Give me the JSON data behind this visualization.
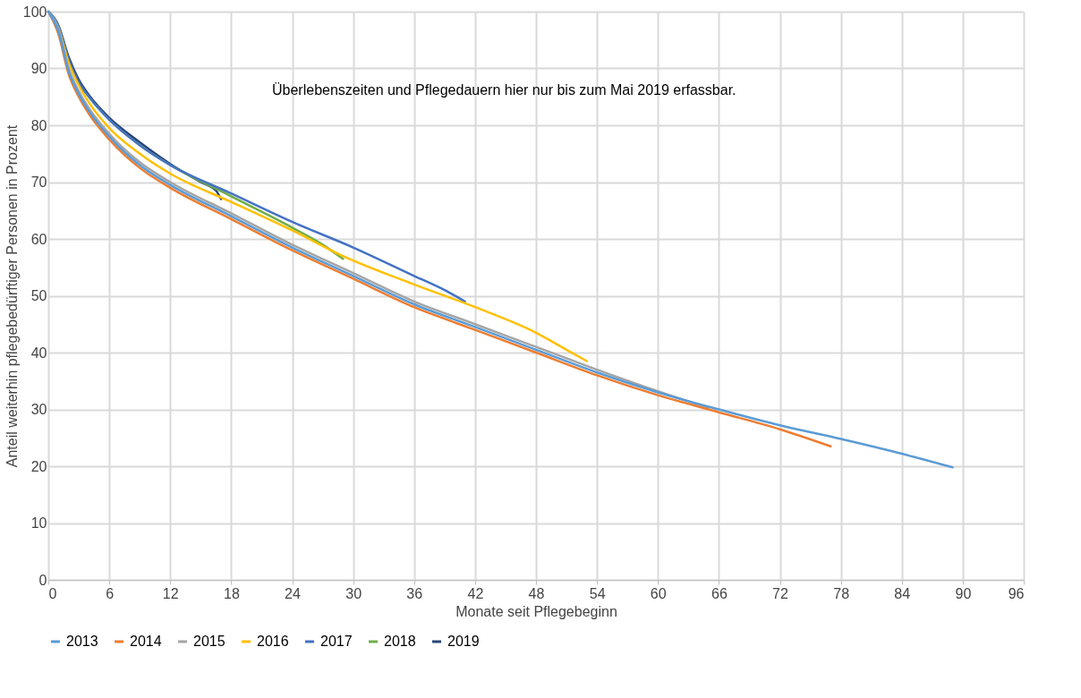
{
  "chart_data": {
    "type": "line",
    "xlabel": "Monate seit Pflegebeginn",
    "ylabel": "Anteil weiterhin pflegebedürftiger Personen in Prozent",
    "annotations": [
      "Überlebenszeiten und Pflegedauern hier nur bis zum Mai 2019 erfassbar."
    ],
    "xlim": [
      0,
      96
    ],
    "xticks": [
      0,
      6,
      12,
      18,
      24,
      30,
      36,
      42,
      48,
      54,
      60,
      66,
      72,
      78,
      84,
      90,
      96
    ],
    "ylim": [
      0,
      100
    ],
    "yticks": [
      0,
      10,
      20,
      30,
      40,
      50,
      60,
      70,
      80,
      90,
      100
    ],
    "grid": true,
    "legend": "bottom",
    "marker": "none",
    "line_style": "solid",
    "series": [
      {
        "name": "2013",
        "color": "#5b9bd5",
        "x": [
          0,
          1,
          2,
          3,
          4,
          6,
          9,
          12,
          18,
          24,
          30,
          36,
          42,
          48,
          54,
          60,
          66,
          72,
          78,
          84,
          89
        ],
        "values": [
          100,
          96.5,
          89.5,
          85.5,
          82.5,
          78,
          73,
          69.5,
          64,
          58.5,
          53.5,
          48.5,
          44.5,
          40.5,
          36.5,
          33,
          30,
          27.2,
          24.8,
          22.2,
          19.8
        ]
      },
      {
        "name": "2014",
        "color": "#ed7d31",
        "x": [
          0,
          1,
          2,
          3,
          4,
          6,
          9,
          12,
          18,
          24,
          30,
          36,
          42,
          48,
          54,
          60,
          66,
          72,
          77
        ],
        "values": [
          100,
          96,
          89,
          85,
          82,
          77.5,
          72.5,
          69,
          63.5,
          58,
          53,
          48,
          44,
          40,
          36,
          32.5,
          29.5,
          26.5,
          23.5
        ]
      },
      {
        "name": "2015",
        "color": "#a5a5a5",
        "x": [
          0,
          1,
          2,
          3,
          4,
          6,
          9,
          12,
          18,
          24,
          30,
          36,
          42,
          48,
          54,
          60,
          65
        ],
        "values": [
          100,
          97,
          90,
          86,
          83,
          78.5,
          73.5,
          70,
          64.5,
          59,
          54,
          49,
          45,
          41,
          37,
          33.2,
          30.2
        ]
      },
      {
        "name": "2016",
        "color": "#ffc000",
        "x": [
          0,
          1,
          2,
          3,
          4,
          6,
          9,
          12,
          18,
          24,
          29,
          36,
          42,
          48,
          51,
          53
        ],
        "values": [
          100,
          97,
          91,
          87,
          84,
          79.5,
          75,
          71.5,
          66.5,
          61.5,
          57,
          52,
          48,
          43.5,
          40.5,
          38.5
        ]
      },
      {
        "name": "2017",
        "color": "#4472c4",
        "x": [
          0,
          1,
          2,
          3,
          4,
          6,
          9,
          12,
          18,
          24,
          30,
          36,
          39,
          41
        ],
        "values": [
          100,
          97.5,
          91.5,
          87.5,
          85,
          81,
          76.5,
          73,
          68,
          63,
          58.5,
          53.5,
          51,
          49
        ]
      },
      {
        "name": "2018",
        "color": "#70ad47",
        "x": [
          0,
          1,
          2,
          3,
          4,
          6,
          9,
          12,
          18,
          24,
          27,
          29
        ],
        "values": [
          100,
          97.5,
          91.5,
          87.5,
          85,
          81,
          76.5,
          73,
          67.5,
          62,
          59,
          56.5
        ]
      },
      {
        "name": "2019",
        "color": "#264478",
        "x": [
          0,
          1,
          2,
          3,
          4,
          6,
          9,
          12,
          15,
          16.5,
          17
        ],
        "values": [
          100,
          97.5,
          92,
          88,
          85.3,
          81.3,
          77,
          73.2,
          70,
          68.5,
          67
        ]
      }
    ]
  }
}
